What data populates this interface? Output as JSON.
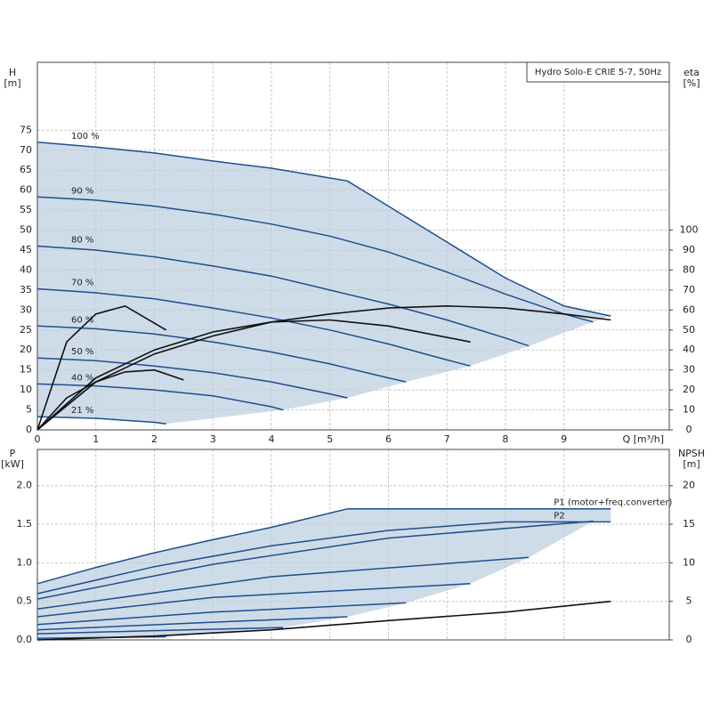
{
  "chart_data": [
    {
      "type": "line",
      "title": "Hydro Solo-E CRIE 5-7, 50Hz",
      "y_label": "H",
      "y_unit": "[m]",
      "y2_label": "eta",
      "y2_unit": "[%]",
      "x_label": "Q [m³/h]",
      "xlim": [
        0,
        10.8
      ],
      "xticks": [
        0,
        1,
        2,
        3,
        4,
        5,
        6,
        7,
        8,
        9
      ],
      "ylim": [
        0,
        92
      ],
      "yticks": [
        0,
        5,
        10,
        15,
        20,
        25,
        30,
        35,
        40,
        45,
        50,
        55,
        60,
        65,
        70,
        75
      ],
      "y2lim": [
        0,
        184
      ],
      "y2ticks": [
        0,
        10,
        20,
        30,
        40,
        50,
        60,
        70,
        80,
        90,
        100
      ],
      "grid": true,
      "series_label_position": "start",
      "region_color": "#c5d6e6",
      "series": [
        {
          "name": "100 %",
          "color": "#1f4e8c",
          "x": [
            0,
            1,
            2,
            3,
            4,
            5.3,
            6,
            7,
            8,
            9,
            9.8
          ],
          "values": [
            72,
            70.8,
            69.3,
            67.3,
            65.5,
            62.3,
            56,
            47,
            38,
            31,
            28.5
          ]
        },
        {
          "name": "90 %",
          "color": "#1f4e8c",
          "x": [
            0,
            1,
            2,
            3,
            4,
            5,
            6,
            7,
            8,
            9,
            9.5
          ],
          "values": [
            58.3,
            57.5,
            56,
            54,
            51.5,
            48.5,
            44.5,
            39.5,
            34,
            29,
            27
          ]
        },
        {
          "name": "80 %",
          "color": "#1f4e8c",
          "x": [
            0,
            1,
            2,
            3,
            4,
            5,
            6,
            7,
            8,
            8.4
          ],
          "values": [
            46,
            45,
            43.3,
            41,
            38.5,
            35,
            31.5,
            27.5,
            23,
            21
          ]
        },
        {
          "name": "70 %",
          "color": "#1f4e8c",
          "x": [
            0,
            1,
            2,
            3,
            4,
            5,
            6,
            7,
            7.4
          ],
          "values": [
            35.3,
            34.3,
            32.8,
            30.5,
            28,
            25,
            21.5,
            17.5,
            16
          ]
        },
        {
          "name": "60 %",
          "color": "#1f4e8c",
          "x": [
            0,
            1,
            2,
            3,
            4,
            5,
            6,
            6.3
          ],
          "values": [
            26,
            25.3,
            24,
            22,
            19.5,
            16.5,
            13,
            12
          ]
        },
        {
          "name": "50 %",
          "color": "#1f4e8c",
          "x": [
            0,
            1,
            2,
            3,
            4,
            5,
            5.3
          ],
          "values": [
            18,
            17.3,
            16,
            14.3,
            12,
            9,
            8
          ]
        },
        {
          "name": "40 %",
          "color": "#1f4e8c",
          "x": [
            0,
            1,
            2,
            3,
            4,
            4.2
          ],
          "values": [
            11.5,
            11,
            10,
            8.5,
            5.8,
            5
          ]
        },
        {
          "name": "21 %",
          "color": "#1f4e8c",
          "x": [
            0,
            1,
            2,
            2.2
          ],
          "values": [
            3.3,
            2.9,
            1.9,
            1.5
          ]
        },
        {
          "axis": "y2",
          "color": "#111111",
          "x": [
            0,
            1,
            2,
            3,
            4,
            5,
            6,
            7,
            8,
            9,
            9.8
          ],
          "values": [
            0,
            24,
            38,
            47,
            54,
            58,
            61,
            62,
            61,
            58,
            55
          ]
        },
        {
          "axis": "y2",
          "color": "#111111",
          "x": [
            0,
            1,
            2,
            3,
            4,
            5,
            6,
            7.4
          ],
          "values": [
            0,
            26,
            40,
            49,
            54,
            55,
            52,
            44
          ]
        },
        {
          "axis": "y2",
          "color": "#111111",
          "x": [
            0,
            0.5,
            1,
            1.5,
            2.2
          ],
          "values": [
            0,
            44,
            58,
            62,
            50
          ]
        },
        {
          "axis": "y2",
          "color": "#111111",
          "x": [
            0,
            0.5,
            1,
            1.5,
            2,
            2.5
          ],
          "values": [
            0,
            16,
            24,
            29,
            30,
            25
          ]
        }
      ]
    },
    {
      "type": "line",
      "y_label": "P",
      "y_unit": "[kW]",
      "y2_label": "NPSH",
      "y2_unit": "[m]",
      "xlim": [
        0,
        10.8
      ],
      "xticks": [
        0,
        1,
        2,
        3,
        4,
        5,
        6,
        7,
        8,
        9
      ],
      "ylim": [
        0,
        2.47
      ],
      "yticks": [
        {
          "value": 0,
          "label": "0.0"
        },
        {
          "value": 0.5,
          "label": "0.5"
        },
        {
          "value": 1,
          "label": "1.0"
        },
        {
          "value": 1.5,
          "label": "1.5"
        },
        {
          "value": 2,
          "label": "2.0"
        }
      ],
      "y2lim": [
        0,
        24.7
      ],
      "y2ticks": [
        0,
        5,
        10,
        15,
        20
      ],
      "grid": true,
      "series_label_position": "end",
      "region_color": "#c5d6e6",
      "series": [
        {
          "name": "P1 (motor+freq.converter)",
          "color": "#1f4e8c",
          "x": [
            0,
            1,
            2,
            3,
            4,
            5.3,
            7,
            9.8
          ],
          "values": [
            0.73,
            0.94,
            1.13,
            1.3,
            1.46,
            1.7,
            1.7,
            1.7
          ]
        },
        {
          "name": "P2",
          "color": "#1f4e8c",
          "x": [
            0,
            2,
            4,
            6,
            8,
            9.8
          ],
          "values": [
            0.6,
            0.95,
            1.22,
            1.42,
            1.53,
            1.53
          ]
        },
        {
          "color": "#1f4e8c",
          "x": [
            0,
            3,
            6,
            9.5
          ],
          "values": [
            0.53,
            0.98,
            1.32,
            1.54
          ]
        },
        {
          "color": "#1f4e8c",
          "x": [
            0,
            4,
            8.4
          ],
          "values": [
            0.4,
            0.82,
            1.07
          ]
        },
        {
          "color": "#1f4e8c",
          "x": [
            0,
            3,
            7.4
          ],
          "values": [
            0.3,
            0.55,
            0.73
          ]
        },
        {
          "color": "#1f4e8c",
          "x": [
            0,
            3,
            6.3
          ],
          "values": [
            0.2,
            0.36,
            0.48
          ]
        },
        {
          "color": "#1f4e8c",
          "x": [
            0,
            3,
            5.3
          ],
          "values": [
            0.13,
            0.23,
            0.3
          ]
        },
        {
          "color": "#1f4e8c",
          "x": [
            0,
            2,
            4.2
          ],
          "values": [
            0.08,
            0.12,
            0.16
          ]
        },
        {
          "color": "#1f4e8c",
          "x": [
            0,
            1,
            2.2
          ],
          "values": [
            0.02,
            0.03,
            0.04
          ]
        },
        {
          "axis": "y2",
          "color": "#111111",
          "x": [
            0,
            2,
            4,
            6,
            8,
            9.8
          ],
          "values": [
            0,
            0.5,
            1.3,
            2.5,
            3.6,
            5
          ]
        }
      ]
    }
  ]
}
